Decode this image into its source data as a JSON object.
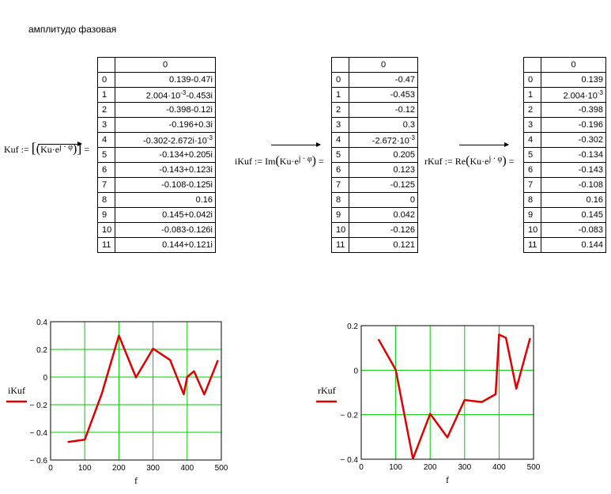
{
  "page_title": "амплитудо фазовая",
  "tables": {
    "kuf": {
      "lhs": "Kuf",
      "assign": ":=",
      "fn": "",
      "expr_base": "Ku·e",
      "expr_exp": "j · φ",
      "equals": "=",
      "header": "0",
      "rows": [
        {
          "i": "0",
          "v": "0.139-0.47i"
        },
        {
          "i": "1",
          "v": "2.004·10",
          "e": "-3",
          "t": "-0.453i"
        },
        {
          "i": "2",
          "v": "-0.398-0.12i"
        },
        {
          "i": "3",
          "v": "-0.196+0.3i"
        },
        {
          "i": "4",
          "v": "-0.302-2.672i·10",
          "e": "-3"
        },
        {
          "i": "5",
          "v": "-0.134+0.205i"
        },
        {
          "i": "6",
          "v": "-0.143+0.123i"
        },
        {
          "i": "7",
          "v": "-0.108-0.125i"
        },
        {
          "i": "8",
          "v": "0.16"
        },
        {
          "i": "9",
          "v": "0.145+0.042i"
        },
        {
          "i": "10",
          "v": "-0.083-0.126i"
        },
        {
          "i": "11",
          "v": "0.144+0.121i"
        }
      ]
    },
    "ikuf": {
      "lhs": "iKuf",
      "assign": ":=",
      "fn": "Im",
      "expr_base": "Ku·e",
      "expr_exp": "j · φ",
      "equals": "=",
      "header": "0",
      "rows": [
        {
          "i": "0",
          "v": "-0.47"
        },
        {
          "i": "1",
          "v": "-0.453"
        },
        {
          "i": "2",
          "v": "-0.12"
        },
        {
          "i": "3",
          "v": "0.3"
        },
        {
          "i": "4",
          "v": "-2.672·10",
          "e": "-3"
        },
        {
          "i": "5",
          "v": "0.205"
        },
        {
          "i": "6",
          "v": "0.123"
        },
        {
          "i": "7",
          "v": "-0.125"
        },
        {
          "i": "8",
          "v": "0"
        },
        {
          "i": "9",
          "v": "0.042"
        },
        {
          "i": "10",
          "v": "-0.126"
        },
        {
          "i": "11",
          "v": "0.121"
        }
      ]
    },
    "rkuf": {
      "lhs": "rKuf",
      "assign": ":=",
      "fn": "Re",
      "expr_base": "Ku·e",
      "expr_exp": "j · φ",
      "equals": "=",
      "header": "0",
      "rows": [
        {
          "i": "0",
          "v": "0.139"
        },
        {
          "i": "1",
          "v": "2.004·10",
          "e": "-3"
        },
        {
          "i": "2",
          "v": "-0.398"
        },
        {
          "i": "3",
          "v": "-0.196"
        },
        {
          "i": "4",
          "v": "-0.302"
        },
        {
          "i": "5",
          "v": "-0.134"
        },
        {
          "i": "6",
          "v": "-0.143"
        },
        {
          "i": "7",
          "v": "-0.108"
        },
        {
          "i": "8",
          "v": "0.16"
        },
        {
          "i": "9",
          "v": "0.145"
        },
        {
          "i": "10",
          "v": "-0.083"
        },
        {
          "i": "11",
          "v": "0.144"
        }
      ]
    }
  },
  "chart_data": [
    {
      "type": "line",
      "ylabel": "iKuf",
      "xlabel": "f",
      "x": [
        50,
        100,
        150,
        200,
        250,
        300,
        350,
        390,
        400,
        420,
        450,
        490
      ],
      "series": [
        {
          "values": [
            -0.47,
            -0.453,
            -0.12,
            0.3,
            -0.003,
            0.205,
            0.123,
            -0.125,
            0,
            0.042,
            -0.126,
            0.121
          ],
          "color": "#e00000"
        }
      ],
      "xlim": [
        0,
        500
      ],
      "ylim": [
        -0.6,
        0.4
      ],
      "xticks": [
        0,
        100,
        200,
        300,
        400,
        500
      ],
      "yticks": [
        0.4,
        0.2,
        0,
        -0.2,
        -0.4,
        -0.6
      ],
      "xtick_labels": [
        "0",
        "100",
        "200",
        "300",
        "400",
        "500"
      ],
      "ytick_labels": [
        "0.4",
        "0.2",
        "0",
        "− 0.2",
        "− 0.4",
        "− 0.6"
      ],
      "grid": true,
      "grid_color": "#00cc00"
    },
    {
      "type": "line",
      "ylabel": "rKuf",
      "xlabel": "f",
      "x": [
        50,
        100,
        150,
        200,
        250,
        300,
        350,
        390,
        400,
        420,
        450,
        490
      ],
      "series": [
        {
          "values": [
            0.139,
            0.002,
            -0.398,
            -0.196,
            -0.302,
            -0.134,
            -0.143,
            -0.108,
            0.16,
            0.145,
            -0.083,
            0.144
          ],
          "color": "#e00000"
        }
      ],
      "xlim": [
        0,
        500
      ],
      "ylim": [
        -0.4,
        0.2
      ],
      "xticks": [
        0,
        100,
        200,
        300,
        400,
        500
      ],
      "yticks": [
        0.2,
        0,
        -0.2,
        -0.4
      ],
      "xtick_labels": [
        "0",
        "100",
        "200",
        "300",
        "400",
        "500"
      ],
      "ytick_labels": [
        "0.2",
        "0",
        "− 0.2",
        "− 0.4"
      ],
      "grid": true,
      "grid_color": "#00cc00"
    }
  ]
}
